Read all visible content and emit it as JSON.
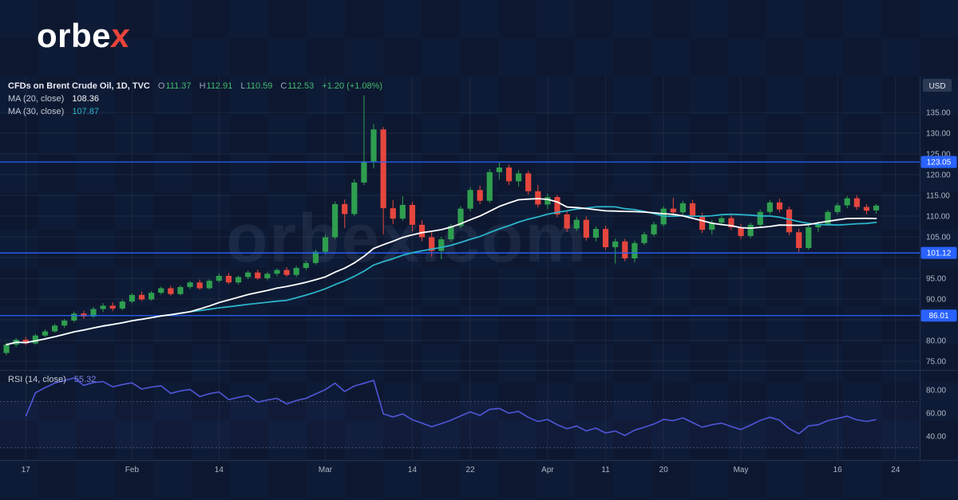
{
  "logo": {
    "prefix": "orbe",
    "accent": "x"
  },
  "watermark": "orbex.com",
  "colors": {
    "background": "#0e1b36",
    "grid": "rgba(255,255,255,0.06)",
    "up": "#2f9e4f",
    "down": "#e5463d",
    "ma20": "#ffffff",
    "ma30": "#2bb3c9",
    "level": "#2962ff",
    "rsi": "#4f56d8",
    "rsi_band": "rgba(90,96,220,0.05)",
    "axis_text": "#aeb6c6",
    "divider": "#223154"
  },
  "legend": {
    "title": "CFDs on Brent Crude Oil, 1D, TVC",
    "ohlc": {
      "o_label": "O",
      "o": "111.37",
      "h_label": "H",
      "h": "112.91",
      "l_label": "L",
      "l": "110.59",
      "c_label": "C",
      "c": "112.53",
      "change": "+1.20 (+1.08%)"
    },
    "overlays": [
      {
        "label": "MA (20, close)",
        "value": "108.36"
      },
      {
        "label": "MA (30, close)",
        "value": "107.87"
      }
    ]
  },
  "rsi_legend": {
    "label": "RSI (14, close)",
    "value": "55.32"
  },
  "axes": {
    "currency_label": "USD",
    "price_ticks": [
      135,
      130,
      125,
      120,
      115,
      110,
      105,
      100,
      95,
      90,
      85,
      80,
      75
    ],
    "levels": [
      {
        "price": 123.05,
        "label": "123.05"
      },
      {
        "price": 101.12,
        "label": "101.12"
      },
      {
        "price": 86.01,
        "label": "86.01"
      }
    ],
    "rsi_ticks": [
      80,
      60,
      40
    ],
    "time_ticks": [
      {
        "label": "17",
        "i": 2
      },
      {
        "label": "Feb",
        "i": 13
      },
      {
        "label": "14",
        "i": 22
      },
      {
        "label": "Mar",
        "i": 33
      },
      {
        "label": "14",
        "i": 42
      },
      {
        "label": "22",
        "i": 48
      },
      {
        "label": "Apr",
        "i": 56
      },
      {
        "label": "11",
        "i": 62
      },
      {
        "label": "20",
        "i": 68
      },
      {
        "label": "May",
        "i": 76
      },
      {
        "label": "16",
        "i": 86
      },
      {
        "label": "24",
        "i": 92
      }
    ]
  },
  "chart_data": {
    "type": "candlestick",
    "title": "CFDs on Brent Crude Oil",
    "interval": "1D",
    "source": "TVC",
    "ylabel": "USD",
    "ylim": [
      74,
      140
    ],
    "levels": [
      123.05,
      101.12,
      86.01
    ],
    "overlays": [
      {
        "type": "sma",
        "period": 20,
        "last": 108.36
      },
      {
        "type": "sma",
        "period": 30,
        "last": 107.87
      }
    ],
    "lower_panel": {
      "type": "rsi",
      "period": 14,
      "bands": [
        70,
        30
      ],
      "ticks": [
        80,
        60,
        40
      ],
      "last": 55.32
    },
    "candles": [
      [
        77.0,
        79.5,
        76.5,
        79.0
      ],
      [
        79.0,
        80.6,
        78.4,
        80.2
      ],
      [
        80.2,
        80.9,
        78.9,
        79.3
      ],
      [
        79.3,
        81.6,
        79.0,
        81.2
      ],
      [
        81.2,
        82.7,
        80.8,
        82.2
      ],
      [
        82.2,
        84.0,
        81.9,
        83.6
      ],
      [
        83.6,
        85.2,
        83.0,
        84.8
      ],
      [
        84.8,
        87.0,
        84.3,
        86.5
      ],
      [
        86.5,
        87.2,
        85.2,
        85.8
      ],
      [
        85.8,
        88.1,
        85.4,
        87.6
      ],
      [
        87.6,
        89.0,
        86.9,
        88.4
      ],
      [
        88.4,
        89.2,
        87.1,
        87.7
      ],
      [
        87.7,
        89.9,
        87.3,
        89.4
      ],
      [
        89.4,
        91.4,
        89.0,
        91.0
      ],
      [
        91.0,
        91.8,
        89.5,
        89.9
      ],
      [
        89.9,
        91.9,
        89.6,
        91.5
      ],
      [
        91.5,
        93.0,
        91.1,
        92.6
      ],
      [
        92.6,
        93.2,
        90.8,
        91.2
      ],
      [
        91.2,
        93.3,
        90.9,
        92.9
      ],
      [
        92.9,
        94.4,
        92.4,
        94.0
      ],
      [
        94.0,
        94.7,
        92.2,
        92.6
      ],
      [
        92.6,
        94.8,
        92.3,
        94.4
      ],
      [
        94.4,
        96.2,
        94.0,
        95.6
      ],
      [
        95.6,
        96.3,
        93.6,
        94.0
      ],
      [
        94.0,
        95.7,
        93.5,
        95.3
      ],
      [
        95.3,
        96.9,
        94.8,
        96.4
      ],
      [
        96.4,
        97.1,
        94.6,
        95.0
      ],
      [
        95.0,
        96.6,
        94.5,
        96.1
      ],
      [
        96.1,
        97.4,
        95.5,
        97.0
      ],
      [
        97.0,
        97.7,
        95.4,
        95.8
      ],
      [
        95.8,
        98.0,
        95.3,
        97.5
      ],
      [
        97.5,
        99.2,
        97.0,
        98.7
      ],
      [
        98.7,
        101.9,
        98.3,
        101.4
      ],
      [
        101.4,
        105.6,
        100.8,
        104.9
      ],
      [
        104.9,
        113.5,
        104.5,
        112.9
      ],
      [
        112.9,
        114.0,
        107.1,
        110.5
      ],
      [
        110.5,
        118.9,
        110.0,
        118.1
      ],
      [
        118.1,
        139.1,
        117.5,
        123.2
      ],
      [
        123.2,
        132.2,
        121.5,
        130.9
      ],
      [
        130.9,
        131.5,
        105.6,
        111.9
      ],
      [
        111.9,
        113.9,
        108.1,
        109.4
      ],
      [
        109.4,
        114.8,
        108.9,
        112.7
      ],
      [
        112.7,
        113.4,
        106.3,
        107.9
      ],
      [
        107.9,
        109.0,
        103.9,
        104.9
      ],
      [
        104.9,
        106.2,
        100.2,
        101.6
      ],
      [
        101.6,
        105.0,
        99.6,
        104.4
      ],
      [
        104.4,
        108.1,
        103.8,
        107.6
      ],
      [
        107.6,
        112.4,
        107.0,
        111.8
      ],
      [
        111.8,
        117.0,
        111.2,
        116.3
      ],
      [
        116.3,
        117.4,
        112.9,
        113.7
      ],
      [
        113.7,
        121.3,
        113.2,
        120.6
      ],
      [
        120.6,
        122.9,
        118.8,
        121.7
      ],
      [
        121.7,
        122.4,
        117.5,
        118.4
      ],
      [
        118.4,
        121.1,
        117.1,
        120.3
      ],
      [
        120.3,
        120.9,
        115.2,
        116.0
      ],
      [
        116.0,
        117.5,
        112.1,
        112.8
      ],
      [
        112.8,
        115.4,
        111.7,
        114.6
      ],
      [
        114.6,
        115.1,
        109.7,
        110.4
      ],
      [
        110.4,
        111.3,
        106.2,
        107.0
      ],
      [
        107.0,
        109.8,
        106.4,
        109.1
      ],
      [
        109.1,
        109.9,
        104.1,
        104.8
      ],
      [
        104.8,
        107.5,
        103.9,
        106.9
      ],
      [
        106.9,
        107.7,
        101.8,
        102.5
      ],
      [
        102.5,
        104.6,
        98.6,
        103.9
      ],
      [
        103.9,
        104.5,
        99.1,
        99.8
      ],
      [
        99.8,
        104.1,
        98.9,
        103.5
      ],
      [
        103.5,
        106.2,
        103.0,
        105.6
      ],
      [
        105.6,
        108.6,
        105.1,
        108.0
      ],
      [
        108.0,
        112.4,
        107.5,
        111.8
      ],
      [
        111.8,
        114.4,
        110.1,
        110.9
      ],
      [
        110.9,
        113.7,
        110.3,
        113.1
      ],
      [
        113.1,
        113.9,
        109.3,
        110.0
      ],
      [
        110.0,
        110.8,
        105.9,
        106.7
      ],
      [
        106.7,
        109.1,
        105.6,
        108.4
      ],
      [
        108.4,
        110.0,
        107.8,
        109.5
      ],
      [
        109.5,
        110.2,
        106.6,
        107.3
      ],
      [
        107.3,
        108.1,
        104.5,
        105.2
      ],
      [
        105.2,
        108.4,
        104.7,
        107.9
      ],
      [
        107.9,
        111.6,
        107.3,
        111.0
      ],
      [
        111.0,
        113.9,
        110.4,
        113.3
      ],
      [
        113.3,
        114.2,
        110.9,
        111.6
      ],
      [
        111.6,
        112.3,
        105.4,
        106.1
      ],
      [
        106.1,
        107.0,
        101.3,
        102.3
      ],
      [
        102.3,
        107.8,
        101.9,
        107.3
      ],
      [
        107.3,
        108.7,
        106.2,
        108.1
      ],
      [
        108.1,
        111.5,
        107.6,
        111.0
      ],
      [
        111.0,
        113.2,
        110.4,
        112.6
      ],
      [
        112.6,
        114.9,
        111.9,
        114.3
      ],
      [
        114.3,
        115.0,
        111.5,
        112.2
      ],
      [
        112.2,
        112.9,
        110.4,
        111.3
      ],
      [
        111.37,
        112.91,
        110.59,
        112.53
      ]
    ]
  }
}
